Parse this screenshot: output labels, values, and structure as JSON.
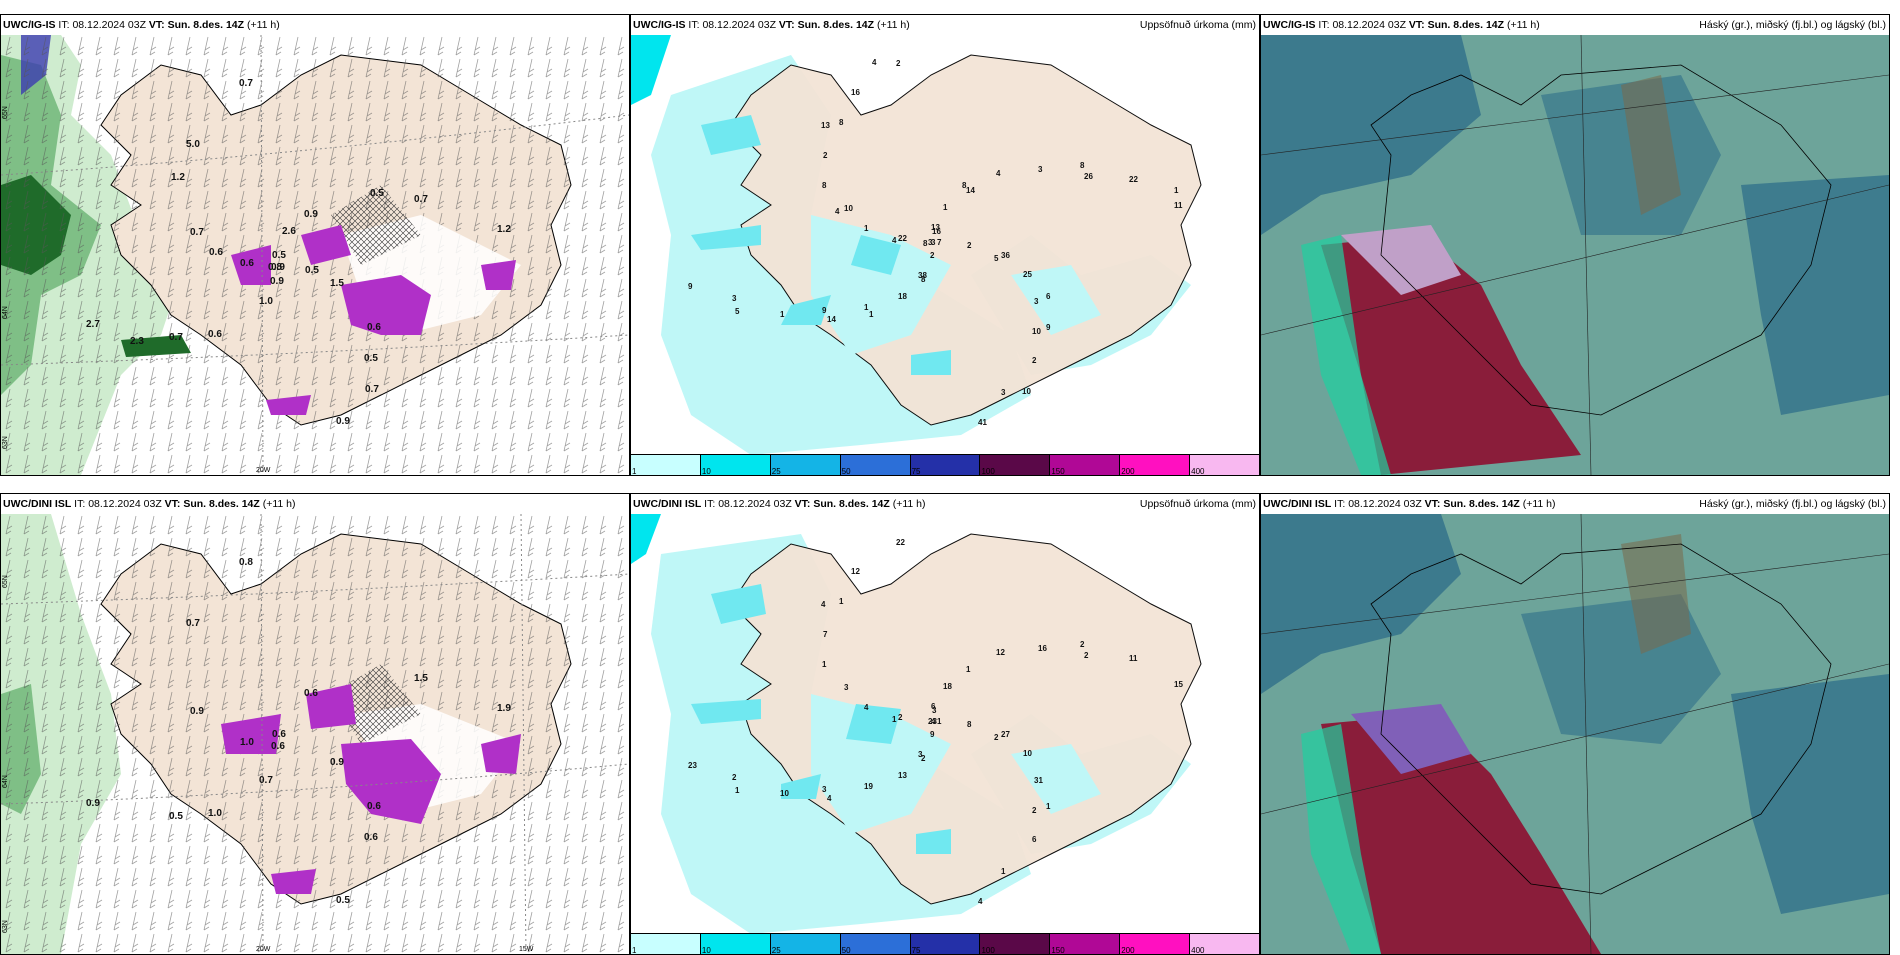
{
  "panels": [
    {
      "model": "UWC/IG-IS",
      "it_label": "IT:",
      "it": "08.12.2024 03Z",
      "vt_label": "VT:",
      "vt": "Sun. 8.des. 14Z",
      "lead": "(+11 h)",
      "right": ""
    },
    {
      "model": "UWC/IG-IS",
      "it_label": "IT:",
      "it": "08.12.2024 03Z",
      "vt_label": "VT:",
      "vt": "Sun. 8.des. 14Z",
      "lead": "(+11 h)",
      "right": "Uppsöfnuð úrkoma (mm)"
    },
    {
      "model": "UWC/IG-IS",
      "it_label": "IT:",
      "it": "08.12.2024 03Z",
      "vt_label": "VT:",
      "vt": "Sun. 8.des. 14Z",
      "lead": "(+11 h)",
      "right": "Háský (gr.), miðský (fj.bl.) og lágský (bl.)"
    },
    {
      "model": "UWC/DINI ISL",
      "it_label": "IT:",
      "it": "08.12.2024 03Z",
      "vt_label": "VT:",
      "vt": "Sun. 8.des. 14Z",
      "lead": "(+11 h)",
      "right": ""
    },
    {
      "model": "UWC/DINI ISL",
      "it_label": "IT:",
      "it": "08.12.2024 03Z",
      "vt_label": "VT:",
      "vt": "Sun. 8.des. 14Z",
      "lead": "(+11 h)",
      "right": "Uppsöfnuð úrkoma (mm)"
    },
    {
      "model": "UWC/DINI ISL",
      "it_label": "IT:",
      "it": "08.12.2024 03Z",
      "vt_label": "VT:",
      "vt": "Sun. 8.des. 14Z",
      "lead": "(+11 h)",
      "right": "Háský (gr.), miðský (fj.bl.) og lágský (bl.)"
    }
  ],
  "map_labels": {
    "lat_65": "65N",
    "lat_64": "64N",
    "lat_63": "63N",
    "lon_25": "25W",
    "lon_20": "20W",
    "lon_15": "15W"
  },
  "colorbar": {
    "ticks": [
      "1",
      "10",
      "25",
      "50",
      "75",
      "100",
      "150",
      "200",
      "400"
    ],
    "colors": [
      "#c8ffff",
      "#00e5ee",
      "#14b4e6",
      "#2c6fd8",
      "#2430a8",
      "#5a0848",
      "#b00896",
      "#ff10c0",
      "#f8b8f0"
    ]
  },
  "colors": {
    "land": "#f3e4d6",
    "sea": "#ffffff",
    "precip_light": "#bff7f7",
    "precip_mid": "#70e8f0",
    "green_dark": "#1f6b2a",
    "green_light": "#cfeccf",
    "magenta": "#b030c8",
    "cloud_bg": "#6da49a",
    "cloud_blue": "#2f6f8a",
    "cloud_red": "#8a1d3a"
  },
  "wind_labels_top": [
    "0.9",
    "0.7",
    "0.5",
    "0.5",
    "0.6",
    "0.7",
    "1.0",
    "5.0",
    "1.5",
    "2.7",
    "0.9",
    "0.9",
    "0.7",
    "1.2",
    "0.6",
    "0.7",
    "0.6",
    "0.8",
    "0.5",
    "0.9",
    "1.2",
    "0.5",
    "2.3",
    "2.6",
    "0.7",
    "0.6"
  ],
  "wind_labels_bottom": [
    "0.6",
    "0.5",
    "0.6",
    "0.6",
    "1.0",
    "1.5",
    "0.7",
    "0.7",
    "0.9",
    "0.9",
    "0.6",
    "0.5",
    "0.9",
    "1.9",
    "1.0",
    "0.8",
    "0.6"
  ],
  "precip_labels_top": [
    "3",
    "9",
    "16",
    "10",
    "22",
    "26",
    "38",
    "8",
    "5",
    "3",
    "14",
    "3",
    "10",
    "11",
    "1",
    "2",
    "3",
    "3",
    "3",
    "2",
    "2",
    "2",
    "1",
    "1",
    "2",
    "1",
    "22",
    "18",
    "16",
    "25",
    "9",
    "4",
    "41",
    "8",
    "7",
    "14",
    "13",
    "9",
    "4",
    "8",
    "8",
    "13",
    "36",
    "5",
    "8",
    "10",
    "4",
    "1",
    "1",
    "4",
    "6",
    "8"
  ],
  "precip_labels_bottom": [
    "4",
    "3",
    "3",
    "2",
    "2",
    "2",
    "3",
    "1",
    "2",
    "2",
    "1",
    "1",
    "3",
    "15",
    "19",
    "22",
    "31",
    "23",
    "16",
    "9",
    "7",
    "8",
    "10",
    "18",
    "6",
    "4",
    "11",
    "13",
    "12",
    "10",
    "23",
    "12",
    "4",
    "1",
    "1",
    "4",
    "6",
    "1",
    "1",
    "2",
    "2",
    "4",
    "27",
    "1"
  ]
}
